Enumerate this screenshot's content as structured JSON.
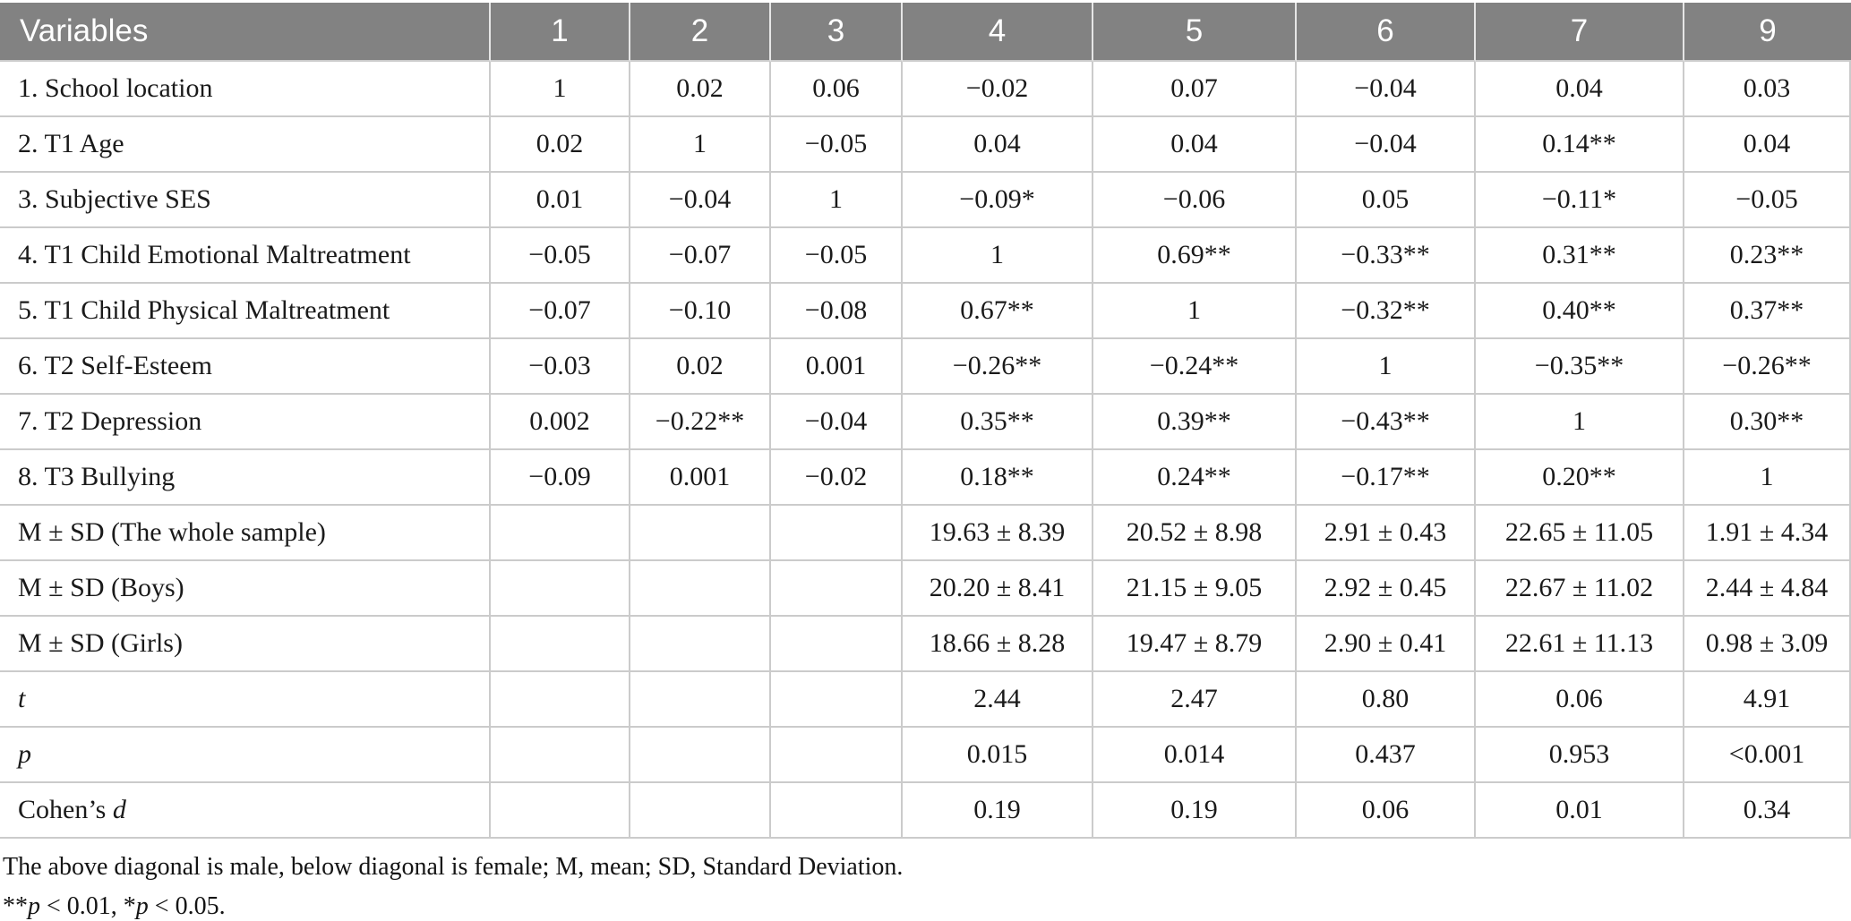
{
  "colors": {
    "header_bg": "#828282",
    "header_text": "#ffffff",
    "header_sep": "#e6e6e6",
    "grid": "#cbcbcb",
    "body_text": "#1a1a1a"
  },
  "table": {
    "header": {
      "label": "Variables",
      "columns": [
        "1",
        "2",
        "3",
        "4",
        "5",
        "6",
        "7",
        "9"
      ]
    },
    "rows": [
      {
        "label": "1. School location",
        "values": [
          "1",
          "0.02",
          "0.06",
          "−0.02",
          "0.07",
          "−0.04",
          "0.04",
          "0.03"
        ]
      },
      {
        "label": "2. T1 Age",
        "values": [
          "0.02",
          "1",
          "−0.05",
          "0.04",
          "0.04",
          "−0.04",
          "0.14**",
          "0.04"
        ]
      },
      {
        "label": "3. Subjective SES",
        "values": [
          "0.01",
          "−0.04",
          "1",
          "−0.09*",
          "−0.06",
          "0.05",
          "−0.11*",
          "−0.05"
        ]
      },
      {
        "label": "4. T1 Child Emotional Maltreatment",
        "values": [
          "−0.05",
          "−0.07",
          "−0.05",
          "1",
          "0.69**",
          "−0.33**",
          "0.31**",
          "0.23**"
        ]
      },
      {
        "label": "5. T1 Child Physical Maltreatment",
        "values": [
          "−0.07",
          "−0.10",
          "−0.08",
          "0.67**",
          "1",
          "−0.32**",
          "0.40**",
          "0.37**"
        ]
      },
      {
        "label": "6. T2 Self-Esteem",
        "values": [
          "−0.03",
          "0.02",
          "0.001",
          "−0.26**",
          "−0.24**",
          "1",
          "−0.35**",
          "−0.26**"
        ]
      },
      {
        "label": "7. T2 Depression",
        "values": [
          "0.002",
          "−0.22**",
          "−0.04",
          "0.35**",
          "0.39**",
          "−0.43**",
          "1",
          "0.30**"
        ]
      },
      {
        "label": "8. T3 Bullying",
        "values": [
          "−0.09",
          "0.001",
          "−0.02",
          "0.18**",
          "0.24**",
          "−0.17**",
          "0.20**",
          "1"
        ]
      },
      {
        "label": "M ± SD (The whole sample)",
        "values": [
          "",
          "",
          "",
          "19.63 ± 8.39",
          "20.52 ± 8.98",
          "2.91 ± 0.43",
          "22.65 ± 11.05",
          "1.91 ± 4.34"
        ]
      },
      {
        "label": "M ± SD (Boys)",
        "values": [
          "",
          "",
          "",
          "20.20 ± 8.41",
          "21.15 ± 9.05",
          "2.92 ± 0.45",
          "22.67 ± 11.02",
          "2.44 ± 4.84"
        ]
      },
      {
        "label": "M ± SD (Girls)",
        "values": [
          "",
          "",
          "",
          "18.66 ± 8.28",
          "19.47 ± 8.79",
          "2.90 ± 0.41",
          "22.61 ± 11.13",
          "0.98 ± 3.09"
        ]
      },
      {
        "label": "t",
        "label_style": "italic",
        "values": [
          "",
          "",
          "",
          "2.44",
          "2.47",
          "0.80",
          "0.06",
          "4.91"
        ]
      },
      {
        "label": "p",
        "label_style": "italic",
        "values": [
          "",
          "",
          "",
          "0.015",
          "0.014",
          "0.437",
          "0.953",
          "<0.001"
        ]
      },
      {
        "label": "Cohen’s d",
        "label_style": "italic-last-word",
        "values": [
          "",
          "",
          "",
          "0.19",
          "0.19",
          "0.06",
          "0.01",
          "0.34"
        ]
      }
    ]
  },
  "footnotes": {
    "note": "The above diagonal is male, below diagonal is female; M, mean; SD, Standard Deviation.",
    "significance": [
      {
        "text": "**"
      },
      {
        "text": "p",
        "italic": true
      },
      {
        "text": " < 0.01, *"
      },
      {
        "text": "p",
        "italic": true
      },
      {
        "text": " < 0.05."
      }
    ]
  }
}
